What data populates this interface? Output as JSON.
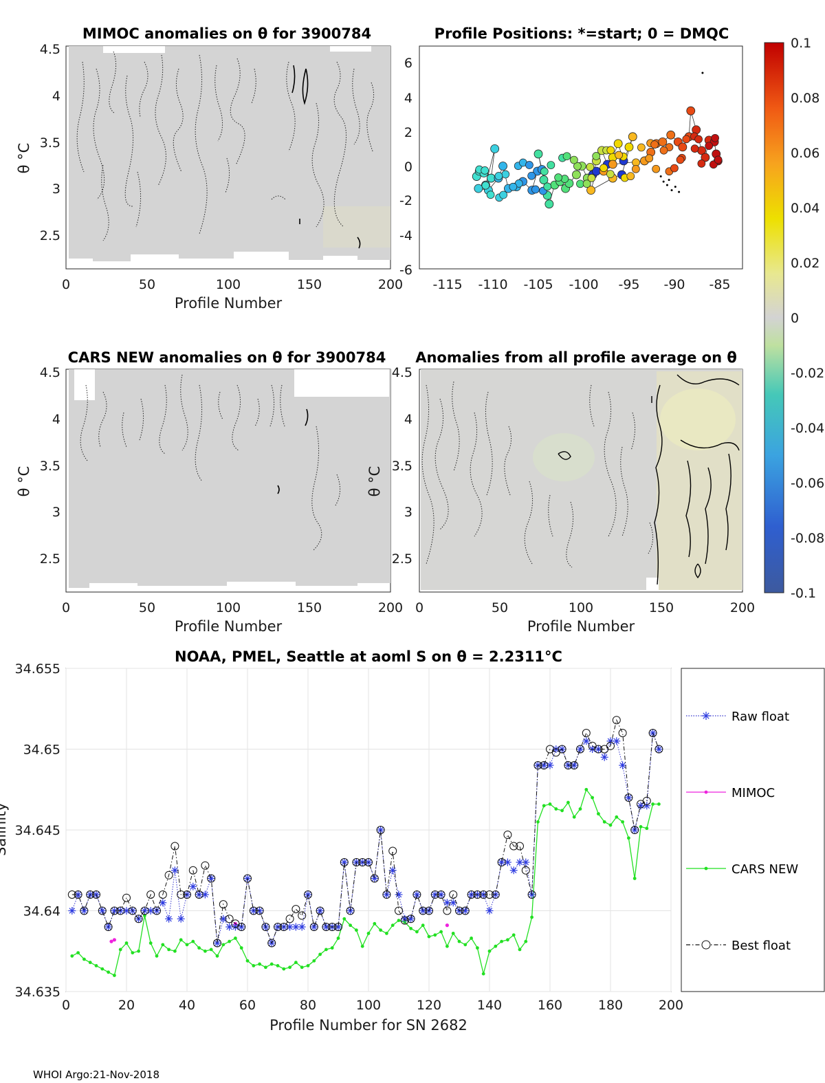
{
  "footer": "WHOI Argo:21-Nov-2018",
  "colorbar": {
    "ticks": [
      "0.1",
      "0.08",
      "0.06",
      "0.04",
      "0.02",
      "0",
      "-0.02",
      "-0.04",
      "-0.06",
      "-0.08",
      "-0.1"
    ],
    "range": [
      -0.1,
      0.1
    ]
  },
  "panels": {
    "mimoc": {
      "title": "MIMOC anomalies on θ  for 3900784",
      "ylabel": "θ °C",
      "xlabel": "Profile Number",
      "xticks": [
        "0",
        "50",
        "100",
        "150",
        "200"
      ],
      "yticks": [
        "4.5",
        "4",
        "3.5",
        "3",
        "2.5"
      ]
    },
    "positions": {
      "title": "Profile Positions: *=start; 0 = DMQC",
      "xticks": [
        "-115",
        "-110",
        "-105",
        "-100",
        "-95",
        "-90",
        "-85"
      ],
      "yticks": [
        "6",
        "4",
        "2",
        "0",
        "-2",
        "-4",
        "-6"
      ]
    },
    "cars": {
      "title": "CARS NEW anomalies on θ for 3900784",
      "ylabel": "θ °C",
      "xlabel": "Profile Number",
      "xticks": [
        "0",
        "50",
        "100",
        "150",
        "200"
      ],
      "yticks": [
        "4.5",
        "4",
        "3.5",
        "3",
        "2.5"
      ]
    },
    "allavg": {
      "title": "Anomalies from all profile average on θ",
      "ylabel": "θ °C",
      "xlabel": "Profile Number",
      "xticks": [
        "0",
        "50",
        "100",
        "150",
        "200"
      ],
      "yticks": [
        "4.5",
        "4",
        "3.5",
        "3",
        "2.5"
      ]
    }
  },
  "chart_data": {
    "type": "line",
    "title": "NOAA, PMEL, Seattle at aoml S on θ = 2.2311°C",
    "xlabel": "Profile Number for SN 2682",
    "ylabel": "Salinity",
    "xlim": [
      0,
      200
    ],
    "ylim": [
      34.635,
      34.655
    ],
    "xticks": [
      "0",
      "20",
      "40",
      "60",
      "80",
      "100",
      "120",
      "140",
      "160",
      "180",
      "200"
    ],
    "yticks": [
      "34.655",
      "34.65",
      "34.645",
      "34.64",
      "34.635"
    ],
    "grid": true,
    "legend_position": "right",
    "series": [
      {
        "name": "Raw float",
        "x": [
          2,
          4,
          6,
          8,
          10,
          12,
          14,
          16,
          18,
          20,
          22,
          24,
          26,
          28,
          30,
          32,
          34,
          36,
          38,
          40,
          42,
          44,
          46,
          48,
          50,
          52,
          54,
          56,
          58,
          60,
          62,
          64,
          66,
          68,
          70,
          72,
          74,
          76,
          78,
          80,
          82,
          84,
          86,
          88,
          90,
          92,
          94,
          96,
          98,
          100,
          102,
          104,
          106,
          108,
          110,
          112,
          114,
          116,
          118,
          120,
          122,
          124,
          126,
          128,
          130,
          132,
          134,
          136,
          138,
          140,
          142,
          144,
          146,
          148,
          150,
          152,
          154,
          156,
          158,
          160,
          162,
          164,
          166,
          168,
          170,
          172,
          174,
          176,
          178,
          180,
          182,
          184,
          186,
          188,
          190,
          192,
          194,
          196
        ],
        "values": [
          34.64,
          34.641,
          34.64,
          34.641,
          34.641,
          34.64,
          34.639,
          34.64,
          34.64,
          34.64,
          34.64,
          34.6395,
          34.64,
          34.64,
          34.64,
          34.6405,
          34.6395,
          34.6425,
          34.6395,
          34.641,
          34.6415,
          34.641,
          34.641,
          34.642,
          34.638,
          34.6395,
          34.639,
          34.639,
          34.639,
          34.642,
          34.64,
          34.64,
          34.639,
          34.638,
          34.639,
          34.639,
          34.639,
          34.639,
          34.639,
          34.641,
          34.639,
          34.64,
          34.639,
          34.639,
          34.639,
          34.643,
          34.64,
          34.643,
          34.643,
          34.643,
          34.642,
          34.645,
          34.641,
          34.6425,
          34.641,
          34.6395,
          34.6395,
          34.641,
          34.64,
          34.64,
          34.641,
          34.641,
          34.6405,
          34.6405,
          34.64,
          34.64,
          34.641,
          34.641,
          34.641,
          34.64,
          34.641,
          34.643,
          34.643,
          34.6425,
          34.643,
          34.643,
          34.641,
          34.649,
          34.649,
          34.649,
          34.65,
          34.65,
          34.649,
          34.649,
          34.65,
          34.6505,
          34.65,
          34.65,
          34.6495,
          34.6505,
          34.6505,
          34.649,
          34.647,
          34.645,
          34.6465,
          34.6465,
          34.651,
          34.65
        ]
      },
      {
        "name": "MIMOC",
        "x": [
          15,
          16,
          56,
          126
        ],
        "values": [
          34.6381,
          34.6382,
          34.6392,
          34.6391
        ]
      },
      {
        "name": "CARS NEW",
        "x": [
          2,
          4,
          6,
          8,
          10,
          12,
          14,
          16,
          18,
          20,
          22,
          24,
          26,
          28,
          30,
          32,
          34,
          36,
          38,
          40,
          42,
          44,
          46,
          48,
          50,
          52,
          54,
          56,
          58,
          60,
          62,
          64,
          66,
          68,
          70,
          72,
          74,
          76,
          78,
          80,
          82,
          84,
          86,
          88,
          90,
          92,
          94,
          96,
          98,
          100,
          102,
          104,
          106,
          108,
          110,
          112,
          114,
          116,
          118,
          120,
          122,
          124,
          126,
          128,
          130,
          132,
          134,
          136,
          138,
          140,
          142,
          144,
          146,
          148,
          150,
          152,
          154,
          156,
          158,
          160,
          162,
          164,
          166,
          168,
          170,
          172,
          174,
          176,
          178,
          180,
          182,
          184,
          186,
          188,
          190,
          192,
          194,
          196
        ],
        "values": [
          34.6372,
          34.6374,
          34.637,
          34.6368,
          34.6366,
          34.6364,
          34.6362,
          34.636,
          34.6376,
          34.638,
          34.6374,
          34.6375,
          34.6397,
          34.638,
          34.6372,
          34.6379,
          34.6376,
          34.6375,
          34.6382,
          34.6379,
          34.6381,
          34.6377,
          34.6375,
          34.6376,
          34.6372,
          34.6379,
          34.6381,
          34.6383,
          34.6377,
          34.6369,
          34.6366,
          34.6367,
          34.6365,
          34.6367,
          34.6366,
          34.6364,
          34.6365,
          34.6368,
          34.6365,
          34.6366,
          34.6369,
          34.6373,
          34.6376,
          34.6377,
          34.6383,
          34.6395,
          34.6391,
          34.6388,
          34.6378,
          34.6386,
          34.6392,
          34.6388,
          34.6386,
          34.6391,
          34.6394,
          34.6393,
          34.6389,
          34.6387,
          34.6391,
          34.6384,
          34.6385,
          34.6387,
          34.6378,
          34.6386,
          34.6381,
          34.6379,
          34.6383,
          34.6377,
          34.6361,
          34.6375,
          34.6378,
          34.6381,
          34.6382,
          34.6385,
          34.6376,
          34.6381,
          34.6396,
          34.6455,
          34.6465,
          34.6466,
          34.6463,
          34.6462,
          34.6467,
          34.6458,
          34.6463,
          34.6475,
          34.647,
          34.646,
          34.6455,
          34.6453,
          34.6458,
          34.6455,
          34.6445,
          34.642,
          34.6452,
          34.6451,
          34.6466,
          34.6466
        ]
      },
      {
        "name": "Best float",
        "x": [
          2,
          4,
          6,
          8,
          10,
          12,
          14,
          16,
          18,
          20,
          22,
          24,
          26,
          28,
          30,
          32,
          34,
          36,
          38,
          40,
          42,
          44,
          46,
          48,
          50,
          52,
          54,
          56,
          58,
          60,
          62,
          64,
          66,
          68,
          70,
          72,
          74,
          76,
          78,
          80,
          82,
          84,
          86,
          88,
          90,
          92,
          94,
          96,
          98,
          100,
          102,
          104,
          106,
          108,
          110,
          112,
          114,
          116,
          118,
          120,
          122,
          124,
          126,
          128,
          130,
          132,
          134,
          136,
          138,
          140,
          142,
          144,
          146,
          148,
          150,
          152,
          154,
          156,
          158,
          160,
          162,
          164,
          166,
          168,
          170,
          172,
          174,
          176,
          178,
          180,
          182,
          184,
          186,
          188,
          190,
          192,
          194,
          196
        ],
        "values": [
          34.641,
          34.641,
          34.64,
          34.641,
          34.641,
          34.64,
          34.639,
          34.64,
          34.64,
          34.6408,
          34.64,
          34.6395,
          34.64,
          34.641,
          34.64,
          34.641,
          34.6422,
          34.644,
          34.641,
          34.641,
          34.6425,
          34.641,
          34.6428,
          34.642,
          34.638,
          34.6404,
          34.6395,
          34.6392,
          34.639,
          34.642,
          34.64,
          34.64,
          34.639,
          34.638,
          34.639,
          34.639,
          34.6395,
          34.6401,
          34.6397,
          34.641,
          34.639,
          34.64,
          34.639,
          34.639,
          34.639,
          34.643,
          34.64,
          34.643,
          34.643,
          34.643,
          34.642,
          34.645,
          34.641,
          34.6437,
          34.64,
          34.6394,
          34.6395,
          34.641,
          34.64,
          34.64,
          34.641,
          34.641,
          34.64,
          34.641,
          34.64,
          34.64,
          34.641,
          34.641,
          34.641,
          34.641,
          34.641,
          34.643,
          34.6447,
          34.644,
          34.644,
          34.6425,
          34.641,
          34.649,
          34.649,
          34.65,
          34.6498,
          34.65,
          34.649,
          34.649,
          34.65,
          34.651,
          34.6502,
          34.65,
          34.65,
          34.6502,
          34.6518,
          34.651,
          34.647,
          34.645,
          34.6466,
          34.6468,
          34.651,
          34.65
        ]
      }
    ]
  }
}
